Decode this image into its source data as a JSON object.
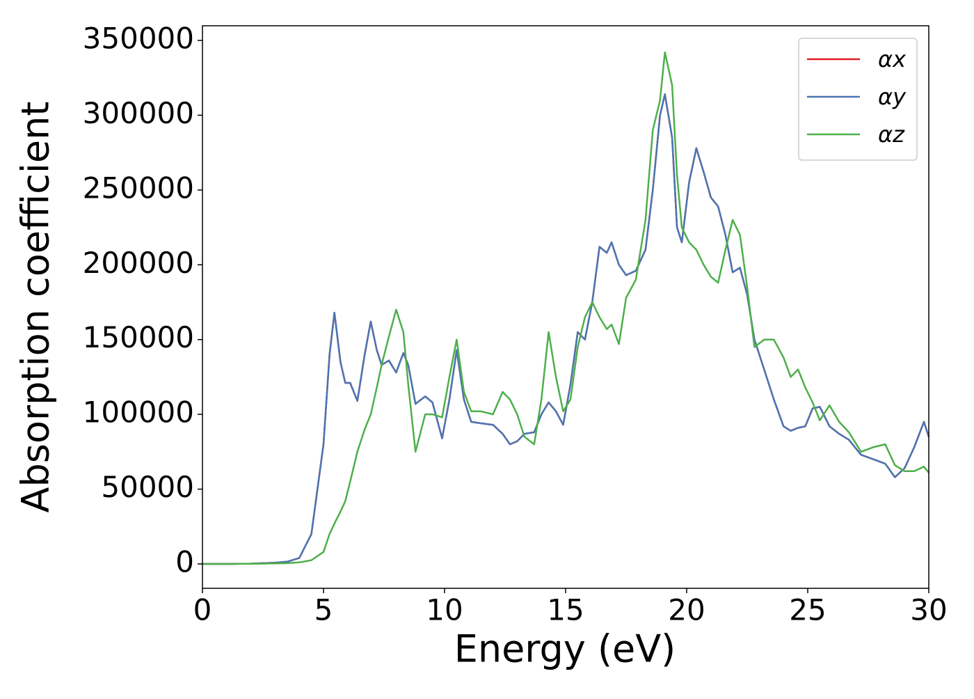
{
  "chart_data": {
    "type": "line",
    "xlabel": "Energy (eV)",
    "ylabel": "Absorption coefficient",
    "x": [
      0,
      1,
      2,
      3,
      3.5,
      4,
      4.5,
      5,
      5.25,
      5.45,
      5.7,
      5.9,
      6.1,
      6.4,
      6.7,
      6.95,
      7.2,
      7.4,
      7.7,
      8.0,
      8.3,
      8.5,
      8.8,
      9.2,
      9.5,
      9.9,
      10.2,
      10.5,
      10.8,
      11.1,
      11.5,
      12.0,
      12.4,
      12.7,
      13.0,
      13.3,
      13.7,
      14.0,
      14.3,
      14.6,
      14.9,
      15.2,
      15.5,
      15.8,
      16.1,
      16.4,
      16.7,
      16.9,
      17.2,
      17.5,
      17.9,
      18.3,
      18.6,
      18.9,
      19.1,
      19.4,
      19.6,
      19.8,
      20.1,
      20.4,
      20.7,
      21.0,
      21.3,
      21.6,
      21.9,
      22.2,
      22.5,
      22.8,
      23.2,
      23.6,
      24.0,
      24.3,
      24.6,
      24.9,
      25.2,
      25.5,
      25.9,
      26.3,
      26.7,
      27.2,
      27.7,
      28.2,
      28.6,
      29.0,
      29.4,
      29.8,
      30.0
    ],
    "series": [
      {
        "name": "αx",
        "color": "#e41a1c",
        "values": [
          0,
          0,
          200,
          800,
          1500,
          4000,
          20000,
          80000,
          140000,
          168000,
          135000,
          121000,
          121000,
          109000,
          140000,
          162000,
          143000,
          133000,
          136000,
          128000,
          141000,
          133000,
          107000,
          112000,
          108000,
          84000,
          110000,
          143000,
          110000,
          95000,
          94000,
          93000,
          87000,
          80000,
          82000,
          87000,
          88000,
          100000,
          108000,
          102000,
          93000,
          120000,
          155000,
          150000,
          175000,
          212000,
          208000,
          215000,
          200000,
          193000,
          196000,
          210000,
          250000,
          300000,
          314000,
          285000,
          225000,
          215000,
          255000,
          278000,
          262000,
          245000,
          239000,
          220000,
          195000,
          198000,
          180000,
          150000,
          130000,
          110000,
          92000,
          89000,
          91000,
          92000,
          104000,
          105000,
          92000,
          87000,
          83000,
          73000,
          70000,
          67000,
          58000,
          64000,
          78000,
          95000,
          85000
        ]
      },
      {
        "name": "αy",
        "color": "#4a76b4",
        "values": [
          0,
          0,
          200,
          800,
          1500,
          4000,
          20000,
          80000,
          140000,
          168000,
          135000,
          121000,
          121000,
          109000,
          140000,
          162000,
          143000,
          133000,
          136000,
          128000,
          141000,
          133000,
          107000,
          112000,
          108000,
          84000,
          110000,
          143000,
          110000,
          95000,
          94000,
          93000,
          87000,
          80000,
          82000,
          87000,
          88000,
          100000,
          108000,
          102000,
          93000,
          120000,
          155000,
          150000,
          175000,
          212000,
          208000,
          215000,
          200000,
          193000,
          196000,
          210000,
          250000,
          300000,
          314000,
          285000,
          225000,
          215000,
          255000,
          278000,
          262000,
          245000,
          239000,
          220000,
          195000,
          198000,
          180000,
          150000,
          130000,
          110000,
          92000,
          89000,
          91000,
          92000,
          104000,
          105000,
          92000,
          87000,
          83000,
          73000,
          70000,
          67000,
          58000,
          64000,
          78000,
          95000,
          85000
        ]
      },
      {
        "name": "αz",
        "color": "#4daf4a",
        "values": [
          0,
          0,
          100,
          300,
          500,
          1000,
          2500,
          8000,
          20000,
          27000,
          35000,
          42000,
          55000,
          75000,
          90000,
          100000,
          118000,
          133000,
          152000,
          170000,
          155000,
          120000,
          75000,
          100000,
          100000,
          98000,
          125000,
          150000,
          115000,
          102000,
          102000,
          100000,
          115000,
          110000,
          100000,
          85000,
          80000,
          110000,
          155000,
          125000,
          102000,
          110000,
          145000,
          165000,
          175000,
          165000,
          157000,
          160000,
          147000,
          178000,
          190000,
          230000,
          290000,
          310000,
          342000,
          320000,
          260000,
          225000,
          215000,
          210000,
          200000,
          192000,
          188000,
          210000,
          230000,
          220000,
          185000,
          145000,
          150000,
          150000,
          138000,
          125000,
          130000,
          118000,
          108000,
          96000,
          106000,
          95000,
          88000,
          75000,
          78000,
          80000,
          66000,
          62000,
          62000,
          65000,
          61000
        ]
      }
    ],
    "xlim": [
      0,
      30
    ],
    "xticks": [
      0,
      5,
      10,
      15,
      20,
      25,
      30
    ],
    "ylim": [
      -16300,
      359800
    ],
    "yticks": [
      0,
      50000,
      100000,
      150000,
      200000,
      250000,
      300000,
      350000
    ],
    "grid": false,
    "legend": "upper right"
  }
}
